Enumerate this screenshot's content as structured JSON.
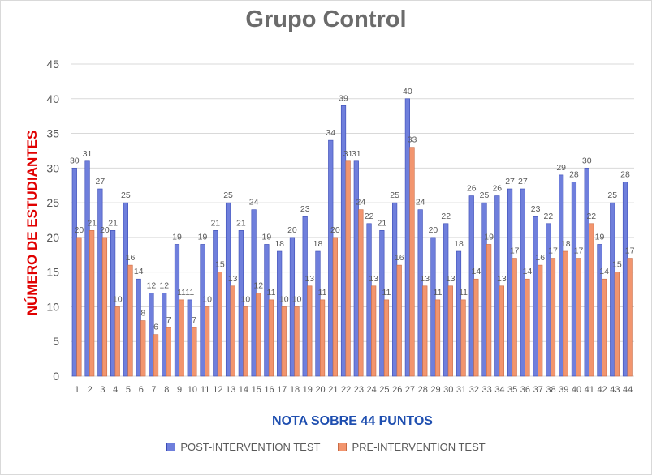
{
  "chart_data": {
    "type": "bar",
    "title": "Grupo Control",
    "xlabel": "NOTA SOBRE 44 PUNTOS",
    "ylabel": "NÚMERO DE ESTUDIANTES",
    "ylim": [
      0,
      45
    ],
    "yticks": [
      0,
      5,
      10,
      15,
      20,
      25,
      30,
      35,
      40,
      45
    ],
    "grid": true,
    "legend_position": "bottom",
    "categories": [
      "1",
      "2",
      "3",
      "4",
      "5",
      "6",
      "7",
      "8",
      "9",
      "10",
      "11",
      "12",
      "13",
      "14",
      "15",
      "16",
      "17",
      "18",
      "19",
      "20",
      "21",
      "22",
      "23",
      "24",
      "25",
      "26",
      "27",
      "28",
      "29",
      "30",
      "31",
      "32",
      "33",
      "34",
      "35",
      "36",
      "37",
      "38",
      "39",
      "40",
      "41",
      "42",
      "43",
      "44"
    ],
    "series": [
      {
        "name": "POST-INTERVENTION TEST",
        "color": "#6f7fdc",
        "values": [
          30,
          31,
          27,
          21,
          25,
          14,
          12,
          12,
          19,
          11,
          19,
          21,
          25,
          21,
          24,
          19,
          18,
          20,
          23,
          18,
          34,
          39,
          31,
          22,
          21,
          25,
          40,
          24,
          20,
          22,
          18,
          26,
          25,
          26,
          27,
          27,
          23,
          22,
          29,
          28,
          30,
          19,
          25,
          28
        ]
      },
      {
        "name": "PRE-INTERVENTION TEST",
        "color": "#f2956e",
        "values": [
          20,
          21,
          20,
          10,
          16,
          8,
          6,
          7,
          11,
          7,
          10,
          15,
          13,
          10,
          12,
          11,
          10,
          10,
          13,
          11,
          20,
          31,
          24,
          13,
          11,
          16,
          33,
          13,
          11,
          13,
          11,
          14,
          19,
          13,
          17,
          14,
          16,
          17,
          18,
          17,
          22,
          14,
          15,
          17
        ]
      }
    ]
  }
}
